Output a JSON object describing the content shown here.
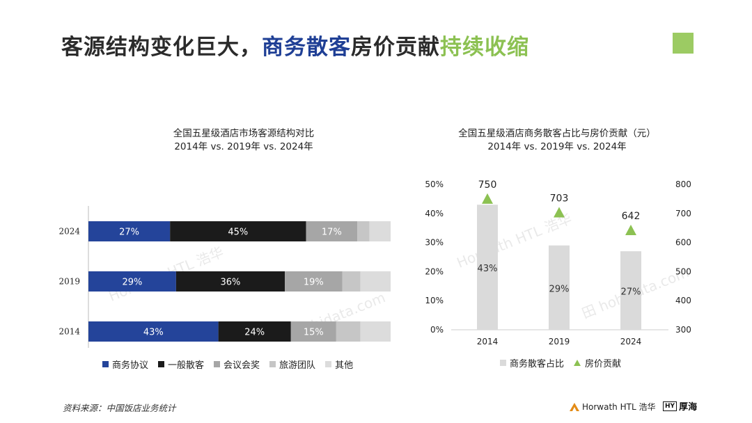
{
  "title": {
    "part1": "客源结构变化巨大，",
    "part2": "商务散客",
    "part3": "房价贡献",
    "part4": "持续收缩"
  },
  "colors": {
    "accent_blue": "#1f3f95",
    "accent_green": "#8cc152",
    "corner_square": "#9ccb63"
  },
  "chart_left_title": {
    "line1": "全国五星级酒店市场客源结构对比",
    "line2": "2014年 vs. 2019年 vs. 2024年"
  },
  "chart_right_title": {
    "line1": "全国五星级酒店商务散客占比与房价贡献（元）",
    "line2": "2014年 vs. 2019年 vs. 2024年"
  },
  "chart_data": [
    {
      "type": "bar",
      "orientation": "horizontal",
      "stacked": true,
      "normalized": true,
      "categories": [
        "2024",
        "2019",
        "2014"
      ],
      "series": [
        {
          "name": "商务协议",
          "color": "#24449a",
          "values": [
            27,
            29,
            43
          ],
          "labels": [
            "27%",
            "29%",
            "43%"
          ]
        },
        {
          "name": "一般散客",
          "color": "#1b1b1b",
          "values": [
            45,
            36,
            24
          ],
          "labels": [
            "45%",
            "36%",
            "24%"
          ]
        },
        {
          "name": "会议会奖",
          "color": "#a6a6a6",
          "values": [
            17,
            19,
            15
          ],
          "labels": [
            "17%",
            "19%",
            "15%"
          ]
        },
        {
          "name": "旅游团队",
          "color": "#c6c6c6",
          "values": [
            4,
            6,
            8
          ],
          "labels": [
            "",
            "",
            ""
          ]
        },
        {
          "name": "其他",
          "color": "#dcdcdc",
          "values": [
            7,
            10,
            10
          ],
          "labels": [
            "",
            "",
            ""
          ]
        }
      ],
      "legend": "bottom"
    },
    {
      "type": "bar",
      "combo": "bar+marker",
      "categories": [
        "2014",
        "2019",
        "2024"
      ],
      "left_axis": {
        "ylim": [
          0,
          50
        ],
        "ticks": [
          "0%",
          "10%",
          "20%",
          "30%",
          "40%",
          "50%"
        ]
      },
      "right_axis": {
        "ylim": [
          300,
          800
        ],
        "ticks": [
          "300",
          "400",
          "500",
          "600",
          "700",
          "800"
        ]
      },
      "series": [
        {
          "name": "商务散客占比",
          "type": "bar",
          "axis": "left",
          "color": "#dadada",
          "values": [
            43,
            29,
            27
          ],
          "labels": [
            "43%",
            "29%",
            "27%"
          ]
        },
        {
          "name": "房价贡献",
          "type": "marker",
          "marker": "triangle",
          "axis": "right",
          "color": "#8cc152",
          "values": [
            750,
            703,
            642
          ],
          "labels": [
            "750",
            "703",
            "642"
          ]
        }
      ],
      "legend": "bottom"
    }
  ],
  "watermarks": {
    "horwath": "Horwath HTL 浩华",
    "hohidata": "hohidata.com",
    "hohidata_prefix": "田"
  },
  "source_note": "资料来源：中国饭店业务统计",
  "logos": {
    "horwath": "Horwath HTL 浩华",
    "hy_mark": "HY",
    "hy_name": "厚海"
  }
}
